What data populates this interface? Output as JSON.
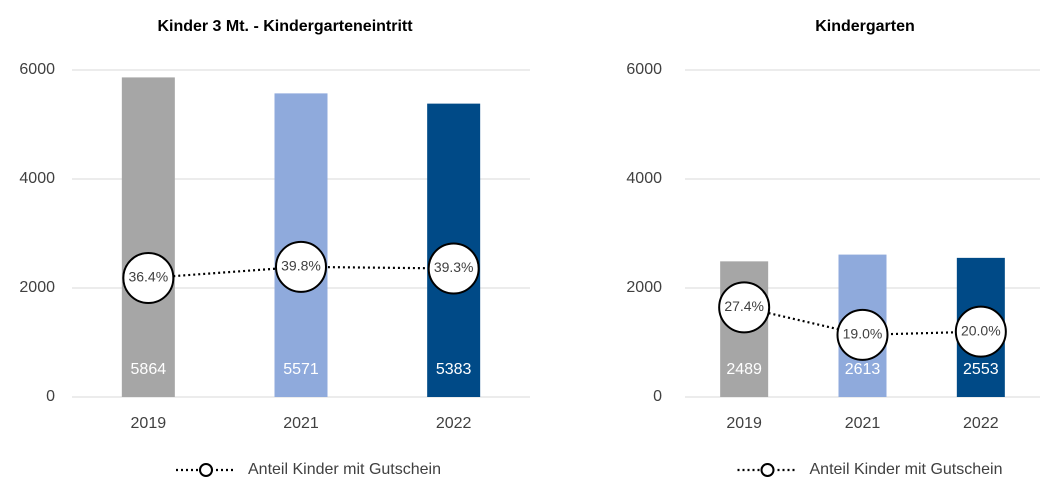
{
  "chart_data": [
    {
      "type": "bar",
      "title": "Kinder 3 Mt. -  Kindergarteneintritt",
      "categories": [
        "2019",
        "2021",
        "2022"
      ],
      "values": [
        5864,
        5571,
        5383
      ],
      "colors": [
        "#a6a6a6",
        "#8faadc",
        "#004a87"
      ],
      "ylim": [
        0,
        6000
      ],
      "yticks": [
        0,
        2000,
        4000,
        6000
      ],
      "y2lim": [
        0,
        100
      ],
      "grid": true,
      "series": [
        {
          "name": "Anteil Kinder mit Gutschein",
          "type": "line",
          "axis": "y2",
          "color": "#000000",
          "values": [
            36.4,
            39.8,
            39.3
          ],
          "value_labels": [
            "36.4%",
            "39.8%",
            "39.3%"
          ]
        }
      ]
    },
    {
      "type": "bar",
      "title": "Kindergarten",
      "categories": [
        "2019",
        "2021",
        "2022"
      ],
      "values": [
        2489,
        2613,
        2553
      ],
      "colors": [
        "#a6a6a6",
        "#8faadc",
        "#004a87"
      ],
      "ylim": [
        0,
        6000
      ],
      "yticks": [
        0,
        2000,
        4000,
        6000
      ],
      "y2lim": [
        0,
        100
      ],
      "grid": true,
      "series": [
        {
          "name": "Anteil Kinder mit Gutschein",
          "type": "line",
          "axis": "y2",
          "color": "#000000",
          "values": [
            27.4,
            19.0,
            20.0
          ],
          "value_labels": [
            "27.4%",
            "19.0%",
            "20.0%"
          ]
        }
      ]
    }
  ]
}
